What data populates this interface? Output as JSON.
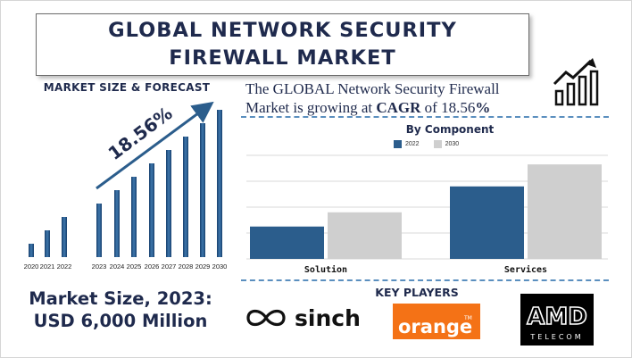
{
  "title": {
    "line1": "GLOBAL NETWORK SECURITY",
    "line2": "FIREWALL MARKET"
  },
  "left_heading": "MARKET SIZE & FORECAST",
  "cagr_text": {
    "pre": "The GLOBAL Network Security Firewall Market is growing at ",
    "cagr_word": "CAGR",
    "mid": " of 18.56",
    "pct": "%"
  },
  "component_title": "By Component",
  "key_players_title": "KEY PLAYERS",
  "market_size": {
    "line1": "Market Size, 2023:",
    "line2": "USD 6,000 Million"
  },
  "logos": {
    "sinch": "sinch",
    "orange": "orange",
    "orange_tm": "TM",
    "amd": "AMD",
    "amd_sub": "TELECOM"
  },
  "colors": {
    "navy": "#1f2a4d",
    "series_2022": "#2b5d8c",
    "series_2030": "#cfcfcf",
    "orange": "#f47216"
  },
  "chart_data": [
    {
      "type": "bar",
      "title": "MARKET SIZE & FORECAST",
      "categories": [
        "2020",
        "2021",
        "2022",
        "2023",
        "2024",
        "2025",
        "2026",
        "2027",
        "2028",
        "2029",
        "2030"
      ],
      "values": [
        2,
        4,
        6,
        8,
        10,
        12,
        14,
        16,
        18,
        20,
        22
      ],
      "annotation": "18.56%",
      "ylim": [
        0,
        22
      ]
    },
    {
      "type": "bar",
      "title": "By Component",
      "categories": [
        "Solution",
        "Services"
      ],
      "series": [
        {
          "name": "2022",
          "values": [
            25,
            56
          ]
        },
        {
          "name": "2030",
          "values": [
            36,
            73
          ]
        }
      ],
      "ylim": [
        0,
        80
      ],
      "grid": true,
      "legend": "top"
    }
  ]
}
